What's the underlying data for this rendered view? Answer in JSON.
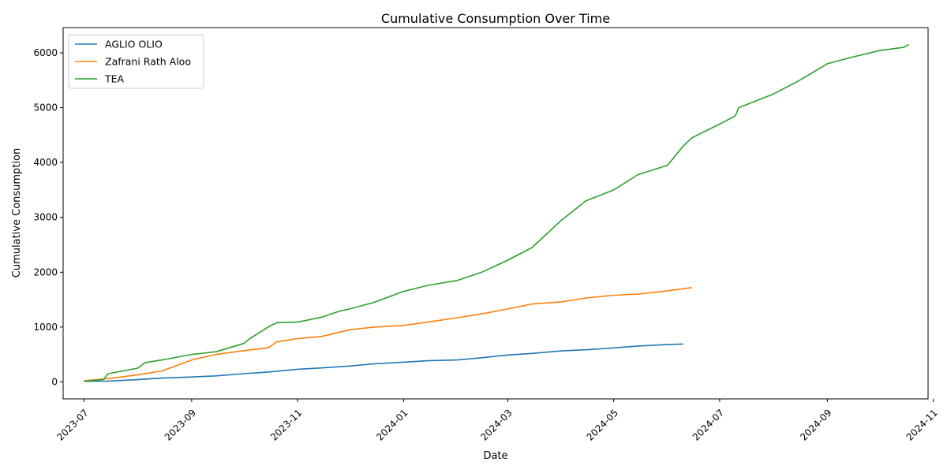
{
  "chart_data": {
    "type": "line",
    "title": "Cumulative Consumption Over Time",
    "xlabel": "Date",
    "ylabel": "Cumulative Consumption",
    "grid": false,
    "legend_position": "top-left",
    "xlim": [
      "2023-06-19",
      "2024-10-29"
    ],
    "ylim": [
      -310,
      6460
    ],
    "x_ticks": [
      "2023-07-01",
      "2023-09-01",
      "2023-11-01",
      "2024-01-01",
      "2024-03-01",
      "2024-05-01",
      "2024-07-01",
      "2024-09-01",
      "2024-11-01"
    ],
    "x_tick_labels": [
      "2023-07",
      "2023-09",
      "2023-11",
      "2024-01",
      "2024-03",
      "2024-05",
      "2024-07",
      "2024-09",
      "2024-11"
    ],
    "y_ticks": [
      0,
      1000,
      2000,
      3000,
      4000,
      5000,
      6000
    ],
    "y_tick_labels": [
      "0",
      "1000",
      "2000",
      "3000",
      "4000",
      "5000",
      "6000"
    ],
    "series": [
      {
        "name": "AGLIO OLIO",
        "color": "#1f77b4",
        "points": [
          [
            "2023-07-01",
            10
          ],
          [
            "2023-07-15",
            15
          ],
          [
            "2023-08-01",
            40
          ],
          [
            "2023-08-15",
            70
          ],
          [
            "2023-09-01",
            90
          ],
          [
            "2023-09-15",
            110
          ],
          [
            "2023-10-01",
            150
          ],
          [
            "2023-10-15",
            180
          ],
          [
            "2023-11-01",
            230
          ],
          [
            "2023-11-15",
            255
          ],
          [
            "2023-12-01",
            290
          ],
          [
            "2023-12-15",
            330
          ],
          [
            "2024-01-01",
            360
          ],
          [
            "2024-01-15",
            385
          ],
          [
            "2024-02-01",
            400
          ],
          [
            "2024-02-15",
            440
          ],
          [
            "2024-03-01",
            490
          ],
          [
            "2024-03-15",
            520
          ],
          [
            "2024-04-01",
            565
          ],
          [
            "2024-04-15",
            585
          ],
          [
            "2024-05-01",
            620
          ],
          [
            "2024-05-15",
            655
          ],
          [
            "2024-06-01",
            680
          ],
          [
            "2024-06-10",
            690
          ]
        ]
      },
      {
        "name": "Zafrani Rath Aloo",
        "color": "#ff7f0e",
        "points": [
          [
            "2023-07-01",
            20
          ],
          [
            "2023-07-15",
            60
          ],
          [
            "2023-08-01",
            130
          ],
          [
            "2023-08-15",
            200
          ],
          [
            "2023-09-01",
            400
          ],
          [
            "2023-09-15",
            500
          ],
          [
            "2023-10-01",
            570
          ],
          [
            "2023-10-15",
            620
          ],
          [
            "2023-10-20",
            730
          ],
          [
            "2023-11-01",
            790
          ],
          [
            "2023-11-15",
            830
          ],
          [
            "2023-12-01",
            950
          ],
          [
            "2023-12-15",
            1000
          ],
          [
            "2024-01-01",
            1030
          ],
          [
            "2024-01-15",
            1090
          ],
          [
            "2024-02-01",
            1170
          ],
          [
            "2024-02-15",
            1240
          ],
          [
            "2024-03-01",
            1330
          ],
          [
            "2024-03-15",
            1420
          ],
          [
            "2024-04-01",
            1460
          ],
          [
            "2024-04-15",
            1530
          ],
          [
            "2024-05-01",
            1580
          ],
          [
            "2024-05-15",
            1600
          ],
          [
            "2024-06-01",
            1660
          ],
          [
            "2024-06-15",
            1720
          ]
        ]
      },
      {
        "name": "TEA",
        "color": "#2ca02c",
        "points": [
          [
            "2023-07-01",
            10
          ],
          [
            "2023-07-12",
            40
          ],
          [
            "2023-07-15",
            150
          ],
          [
            "2023-08-01",
            250
          ],
          [
            "2023-08-05",
            350
          ],
          [
            "2023-08-15",
            400
          ],
          [
            "2023-09-01",
            500
          ],
          [
            "2023-09-15",
            550
          ],
          [
            "2023-10-01",
            700
          ],
          [
            "2023-10-05",
            800
          ],
          [
            "2023-10-15",
            1000
          ],
          [
            "2023-10-20",
            1080
          ],
          [
            "2023-11-01",
            1090
          ],
          [
            "2023-11-15",
            1180
          ],
          [
            "2023-11-25",
            1290
          ],
          [
            "2023-12-01",
            1330
          ],
          [
            "2023-12-15",
            1450
          ],
          [
            "2024-01-01",
            1650
          ],
          [
            "2024-01-15",
            1760
          ],
          [
            "2024-02-01",
            1850
          ],
          [
            "2024-02-15",
            2000
          ],
          [
            "2024-03-01",
            2220
          ],
          [
            "2024-03-15",
            2450
          ],
          [
            "2024-04-01",
            2950
          ],
          [
            "2024-04-15",
            3300
          ],
          [
            "2024-05-01",
            3500
          ],
          [
            "2024-05-15",
            3780
          ],
          [
            "2024-06-01",
            3950
          ],
          [
            "2024-06-10",
            4300
          ],
          [
            "2024-06-15",
            4450
          ],
          [
            "2024-07-01",
            4700
          ],
          [
            "2024-07-10",
            4850
          ],
          [
            "2024-07-12",
            5000
          ],
          [
            "2024-08-01",
            5250
          ],
          [
            "2024-08-15",
            5480
          ],
          [
            "2024-09-01",
            5800
          ],
          [
            "2024-09-15",
            5920
          ],
          [
            "2024-10-01",
            6040
          ],
          [
            "2024-10-15",
            6100
          ],
          [
            "2024-10-18",
            6150
          ]
        ]
      }
    ]
  }
}
